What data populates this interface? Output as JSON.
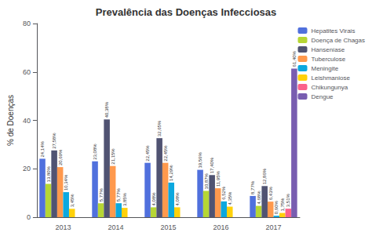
{
  "chart_data": {
    "type": "bar",
    "title": "Prevalência das Doenças Infecciosas",
    "ylabel": "% de Doenças",
    "categories": [
      "2013",
      "2014",
      "2015",
      "2016",
      "2017"
    ],
    "series": [
      {
        "name": "Hepatites Virais",
        "values": [
          24.14,
          23.08,
          22.45,
          19.56,
          8.77
        ],
        "value_labels": [
          "24,14%",
          "23,08%",
          "22,45%",
          "19,56%",
          "8,77%"
        ]
      },
      {
        "name": "Doença de Chagas",
        "values": [
          13.8,
          5.77,
          4.08,
          10.87,
          4.68
        ],
        "value_labels": [
          "13,80%",
          "5,77%",
          "4,08%",
          "10,87%",
          "4,68%"
        ]
      },
      {
        "name": "Hanseníase",
        "values": [
          27.58,
          40.38,
          32.65,
          17.4,
          12.86
        ],
        "value_labels": [
          "27,58%",
          "40,38%",
          "32,65%",
          "17,40%",
          "12,86%"
        ]
      },
      {
        "name": "Tuberculose",
        "values": [
          20.69,
          21.15,
          22.45,
          11.95,
          6.43
        ],
        "value_labels": [
          "20,69%",
          "21,15%",
          "22,45%",
          "11,95%",
          "6,43%"
        ]
      },
      {
        "name": "Meningite",
        "values": [
          10.34,
          5.77,
          14.29,
          6.52,
          0.6
        ],
        "value_labels": [
          "10,34%",
          "5,77%",
          "14,29%",
          "6,52%",
          "0,60%"
        ]
      },
      {
        "name": "Leishmaniose",
        "values": [
          3.45,
          3.85,
          4.08,
          4.35,
          1.75
        ],
        "value_labels": [
          "3,45%",
          "3,85%",
          "4,08%",
          "4,35%",
          "1,75%"
        ]
      },
      {
        "name": "Chikungunya",
        "values": [
          0,
          0,
          0,
          0,
          3.51
        ],
        "value_labels": [
          null,
          null,
          null,
          null,
          "3,51%"
        ]
      },
      {
        "name": "Dengue",
        "values": [
          0,
          0,
          0,
          0,
          61.4
        ],
        "value_labels": [
          null,
          null,
          null,
          null,
          "61,40%"
        ]
      }
    ],
    "ylim": [
      0,
      80
    ],
    "yticks": [
      0,
      20,
      40,
      60,
      80
    ],
    "grid": false,
    "legend": "upper right",
    "data_labels": true
  }
}
